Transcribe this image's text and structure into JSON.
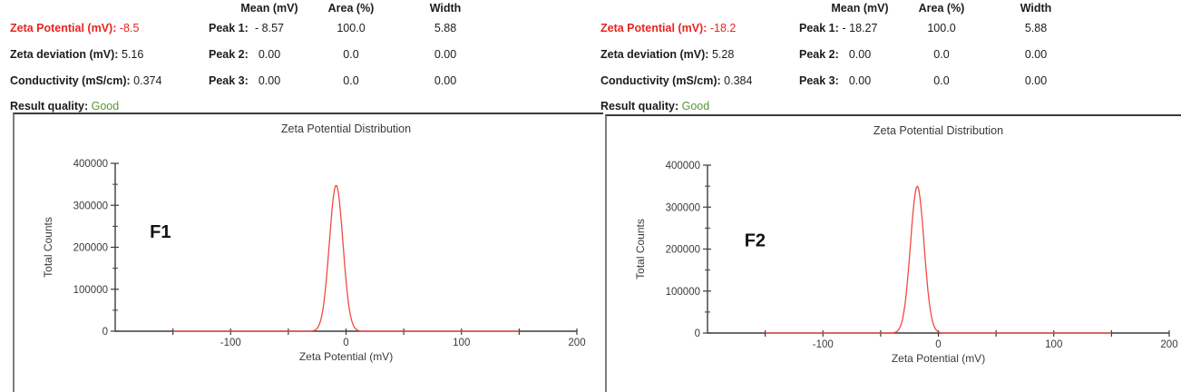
{
  "colors": {
    "ink": "#1c1c1c",
    "red": "#e8251f",
    "green": "#55992f",
    "curve": "#f04a44",
    "axis": "#3c3c3c"
  },
  "panels": [
    {
      "summary": [
        {
          "label": "Zeta Potential (mV):",
          "value": "-8.5"
        },
        {
          "label": "Zeta deviation (mV):",
          "value": "5.16"
        },
        {
          "label": "Conductivity (mS/cm):",
          "value": "0.374"
        },
        {
          "label": "Result quality:",
          "value": "Good"
        }
      ],
      "table": {
        "headers": {
          "mean": "Mean (mV)",
          "area": "Area (%)",
          "width": "Width"
        },
        "rows": [
          {
            "label": "Peak 1:",
            "mean": "- 8.57",
            "area": "100.0",
            "width": "5.88"
          },
          {
            "label": "Peak 2:",
            "mean": "0.00",
            "area": "0.0",
            "width": "0.00"
          },
          {
            "label": "Peak 3:",
            "mean": "0.00",
            "area": "0.0",
            "width": "0.00"
          }
        ]
      }
    },
    {
      "summary": [
        {
          "label": "Zeta Potential (mV):",
          "value": "-18.2"
        },
        {
          "label": "Zeta deviation (mV):",
          "value": "5.28"
        },
        {
          "label": "Conductivity (mS/cm):",
          "value": "0.384"
        },
        {
          "label": "Result quality:",
          "value": "Good"
        }
      ],
      "table": {
        "headers": {
          "mean": "Mean (mV)",
          "area": "Area (%)",
          "width": "Width"
        },
        "rows": [
          {
            "label": "Peak 1:",
            "mean": "- 18.27",
            "area": "100.0",
            "width": "5.88"
          },
          {
            "label": "Peak 2:",
            "mean": "0.00",
            "area": "0.0",
            "width": "0.00"
          },
          {
            "label": "Peak 3:",
            "mean": "0.00",
            "area": "0.0",
            "width": "0.00"
          }
        ]
      }
    }
  ],
  "chart_data": [
    {
      "type": "line",
      "title": "Zeta Potential Distribution",
      "xlabel": "Zeta Potential (mV)",
      "ylabel": "Total Counts",
      "xlim": [
        -200,
        200
      ],
      "ylim": [
        0,
        400000
      ],
      "x_major_ticks": [
        -100,
        0,
        100,
        200
      ],
      "x_minor_ticks": [
        -150,
        -50,
        50,
        150
      ],
      "y_major_ticks": [
        0,
        100000,
        200000,
        300000,
        400000
      ],
      "y_minor_ticks": [
        50000,
        150000,
        250000,
        350000
      ],
      "grid": false,
      "annotation": {
        "text": "F1",
        "x": -170,
        "y": 238000
      },
      "series": [
        {
          "name": "zeta-distribution",
          "color": "#f04a44",
          "peak_mean": -8.57,
          "peak_sigma": 5.88,
          "peak_height": 348000,
          "x_start": -150,
          "x_end": 150
        }
      ]
    },
    {
      "type": "line",
      "title": "Zeta Potential Distribution",
      "xlabel": "Zeta Potential (mV)",
      "ylabel": "Total Counts",
      "xlim": [
        -200,
        200
      ],
      "ylim": [
        0,
        400000
      ],
      "x_major_ticks": [
        -100,
        0,
        100,
        200
      ],
      "x_minor_ticks": [
        -150,
        -50,
        50,
        150
      ],
      "y_major_ticks": [
        0,
        100000,
        200000,
        300000,
        400000
      ],
      "y_minor_ticks": [
        50000,
        150000,
        250000,
        350000
      ],
      "grid": false,
      "annotation": {
        "text": "F2",
        "x": -168,
        "y": 222000
      },
      "series": [
        {
          "name": "zeta-distribution",
          "color": "#f04a44",
          "peak_mean": -18.27,
          "peak_sigma": 5.88,
          "peak_height": 350000,
          "x_start": -150,
          "x_end": 150
        }
      ]
    }
  ]
}
